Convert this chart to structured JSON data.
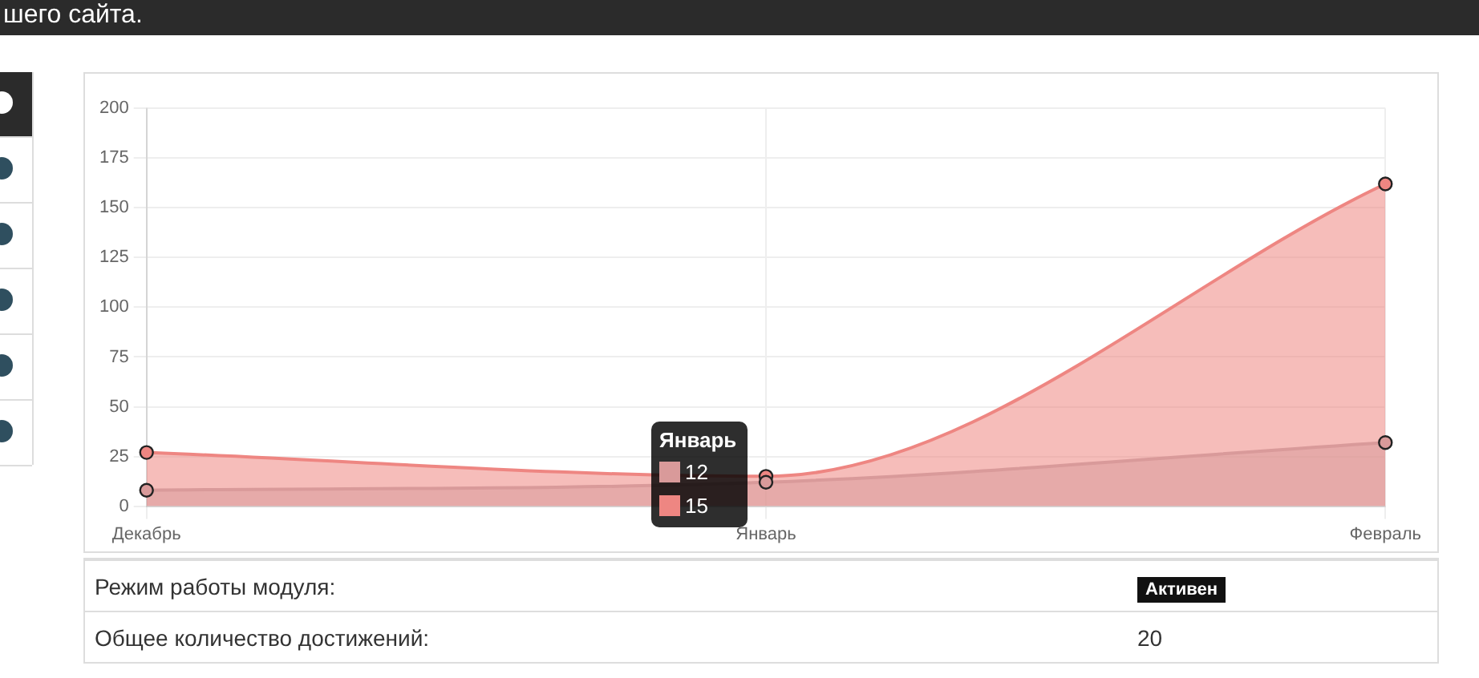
{
  "chart_data": [
    {
      "type": "area",
      "categories": [
        "Декабрь",
        "Январь",
        "Февраль"
      ],
      "series": [
        {
          "color": "#d99a9a",
          "values": [
            8,
            12,
            32
          ]
        },
        {
          "color": "#ee8682",
          "values": [
            27,
            15,
            162
          ]
        }
      ],
      "ylim": [
        0,
        200
      ],
      "yticks": [
        0,
        25,
        50,
        75,
        100,
        125,
        150,
        175,
        200
      ],
      "grid": true,
      "marker": "circle",
      "legend": false,
      "annotations": [
        "Январь",
        "12",
        "15"
      ]
    },
    {
      "type": "other",
      "annotations": [
        "шего сайта.",
        "Режим работы модуля:",
        "Активен",
        "Общее количество достижений:",
        "20"
      ]
    }
  ]
}
